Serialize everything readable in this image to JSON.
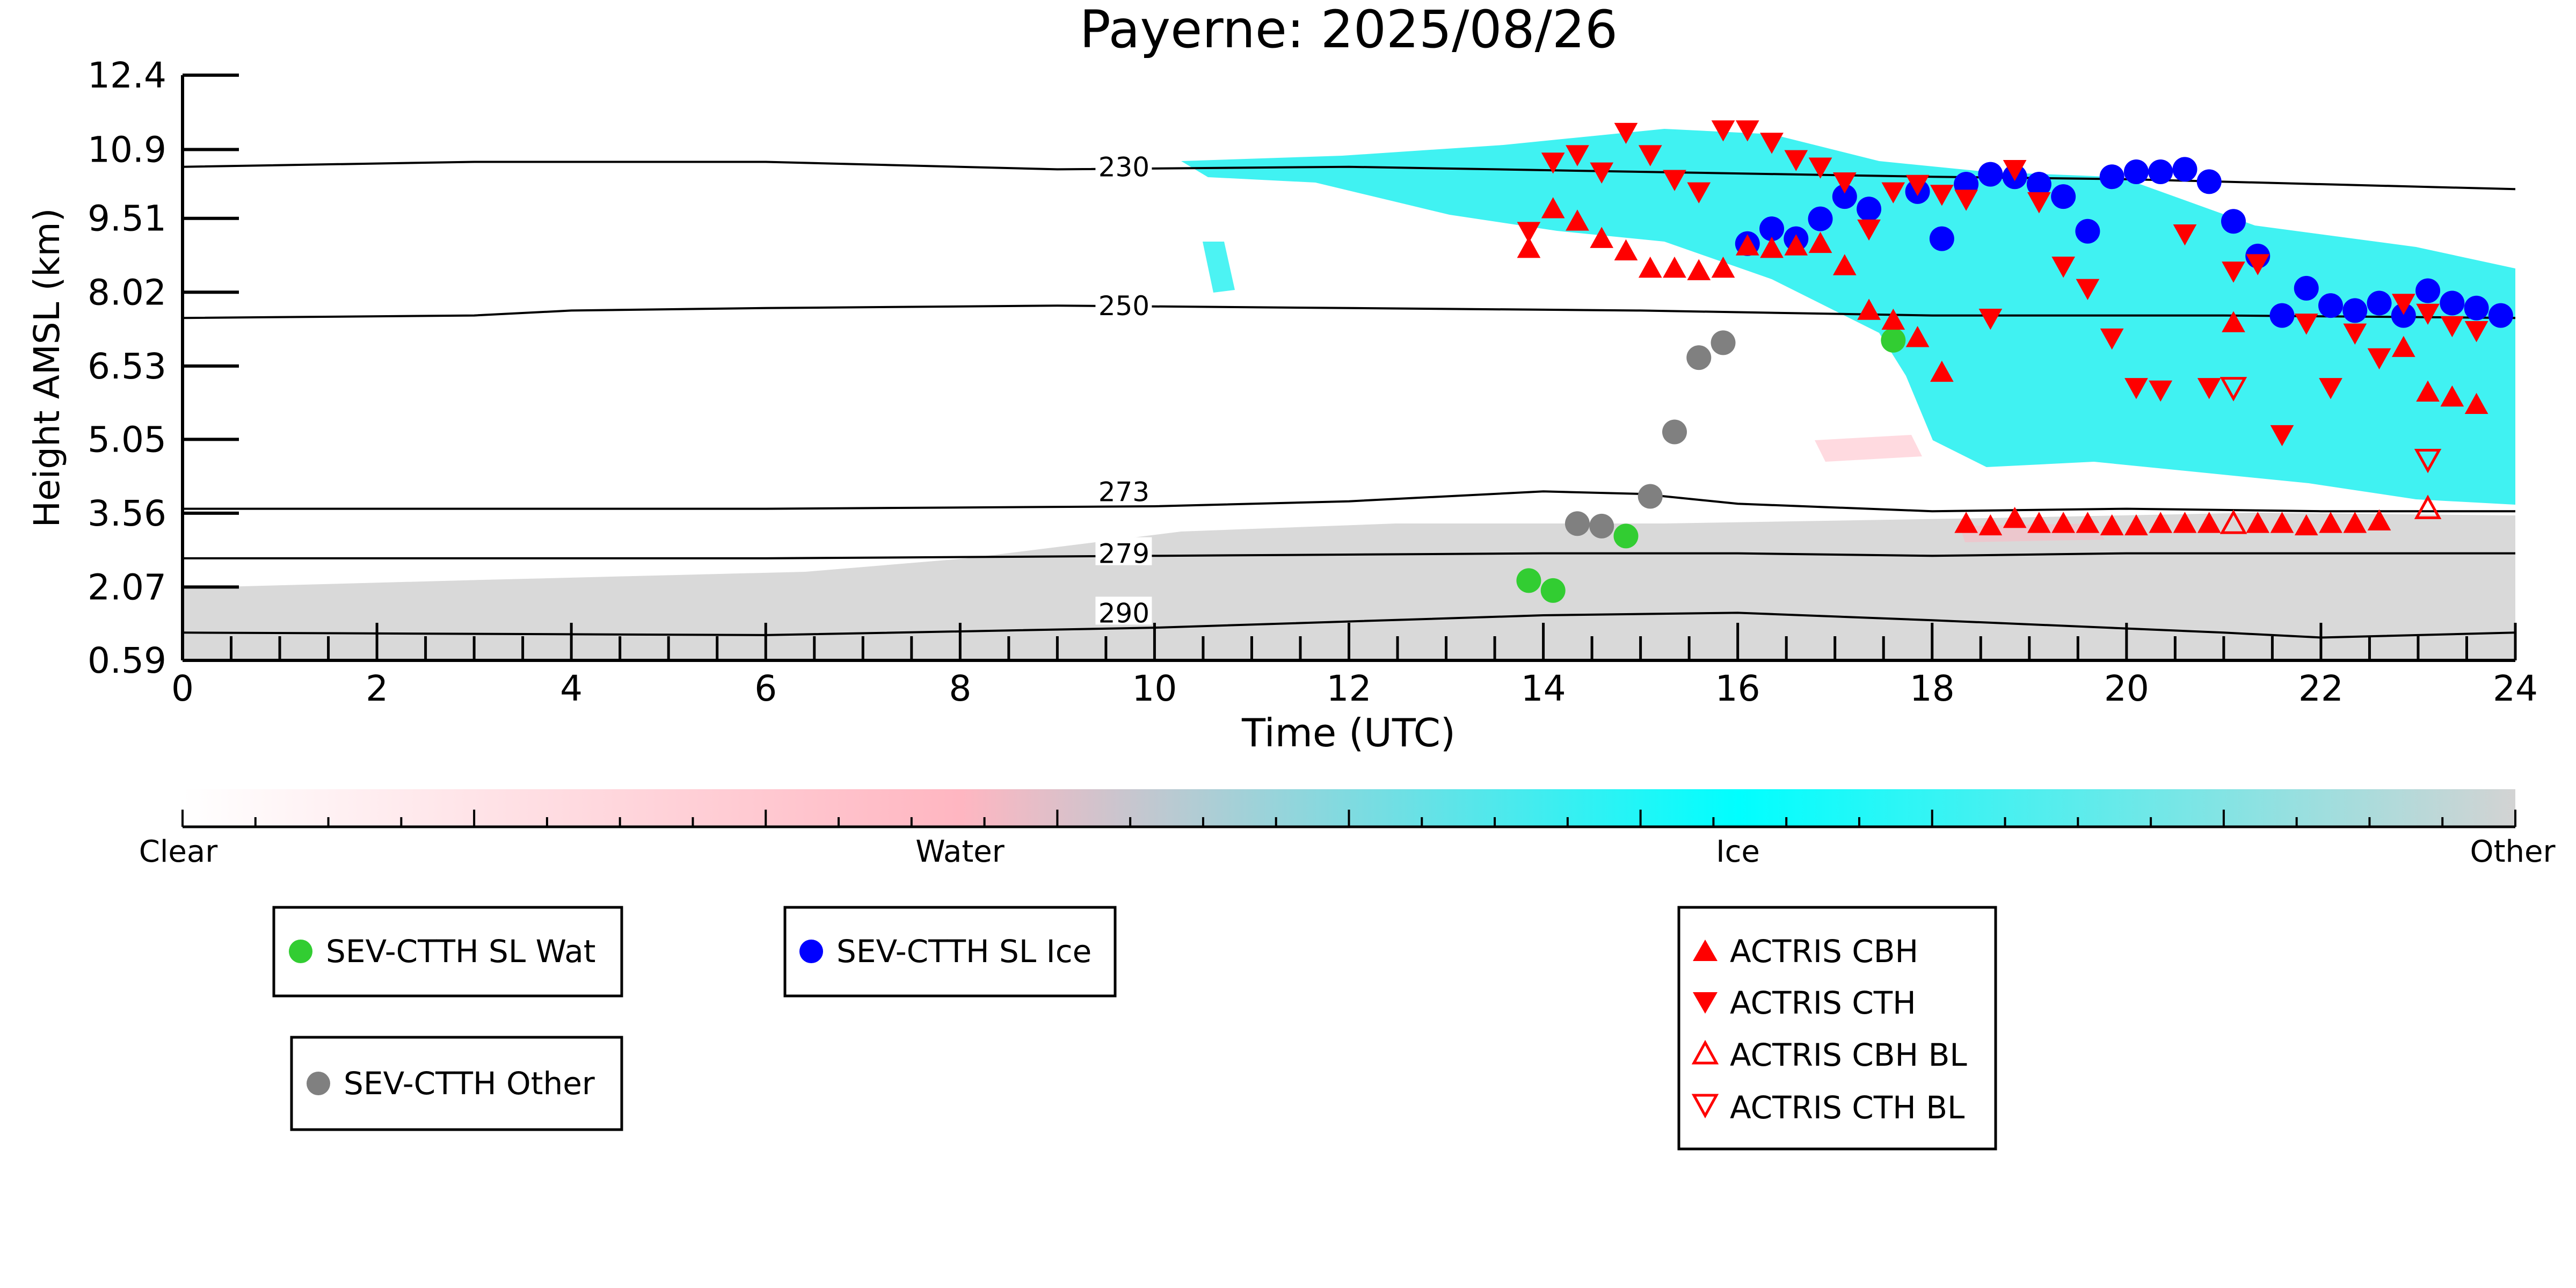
{
  "chart_data": {
    "type": "scatter",
    "title": "Payerne: 2025/08/26",
    "xlabel": "Time (UTC)",
    "ylabel": "Height AMSL (km)",
    "xlim": [
      0,
      24
    ],
    "ylim": [
      0.59,
      12.4
    ],
    "x_ticks": [
      0,
      2,
      4,
      6,
      8,
      10,
      12,
      14,
      16,
      18,
      20,
      22,
      24
    ],
    "y_ticks": [
      "0.59",
      "2.07",
      "3.56",
      "5.05",
      "6.53",
      "8.02",
      "9.51",
      "10.9",
      "12.4"
    ],
    "grid": false,
    "colors": {
      "clear": "#ffffff",
      "water": "#ffb6c1",
      "ice": "#00ffff",
      "other": "#d3d3d3",
      "sev_water": "#32cd32",
      "sev_ice": "#0000ff",
      "sev_other": "#808080",
      "actris": "#ff0000"
    },
    "colorbar": {
      "labels": [
        "Clear",
        "Water",
        "Ice",
        "Other"
      ]
    },
    "isotherms": [
      {
        "label": "230",
        "points": [
          [
            0,
            10.55
          ],
          [
            3,
            10.65
          ],
          [
            6,
            10.65
          ],
          [
            9,
            10.5
          ],
          [
            12,
            10.55
          ],
          [
            15,
            10.45
          ],
          [
            18,
            10.35
          ],
          [
            20,
            10.3
          ],
          [
            24,
            10.1
          ]
        ]
      },
      {
        "label": "250",
        "points": [
          [
            0,
            7.5
          ],
          [
            3,
            7.55
          ],
          [
            4,
            7.65
          ],
          [
            6,
            7.7
          ],
          [
            9,
            7.75
          ],
          [
            12,
            7.7
          ],
          [
            15,
            7.65
          ],
          [
            18,
            7.55
          ],
          [
            21,
            7.55
          ],
          [
            24,
            7.5
          ]
        ]
      },
      {
        "label": "273",
        "points": [
          [
            0,
            3.65
          ],
          [
            6,
            3.65
          ],
          [
            10,
            3.7
          ],
          [
            12,
            3.8
          ],
          [
            14,
            4.0
          ],
          [
            15,
            3.95
          ],
          [
            16,
            3.75
          ],
          [
            18,
            3.6
          ],
          [
            20,
            3.65
          ],
          [
            22,
            3.6
          ],
          [
            24,
            3.6
          ]
        ]
      },
      {
        "label": "279",
        "points": [
          [
            0,
            2.65
          ],
          [
            6,
            2.65
          ],
          [
            10,
            2.7
          ],
          [
            14,
            2.75
          ],
          [
            16,
            2.75
          ],
          [
            18,
            2.7
          ],
          [
            20,
            2.75
          ],
          [
            24,
            2.75
          ]
        ]
      },
      {
        "label": "290",
        "points": [
          [
            0,
            1.15
          ],
          [
            6,
            1.1
          ],
          [
            10,
            1.25
          ],
          [
            14,
            1.5
          ],
          [
            16,
            1.55
          ],
          [
            18,
            1.4
          ],
          [
            21,
            1.15
          ],
          [
            22,
            1.05
          ],
          [
            24,
            1.15
          ]
        ]
      }
    ],
    "series": [
      {
        "name": "SEV-CTTH SL Wat",
        "marker": "circle",
        "color": "#32cd32",
        "points": [
          [
            13.85,
            2.2
          ],
          [
            14.1,
            2.0
          ],
          [
            14.85,
            3.1
          ],
          [
            17.6,
            7.05
          ]
        ]
      },
      {
        "name": "SEV-CTTH SL Ice",
        "marker": "circle",
        "color": "#0000ff",
        "points": [
          [
            16.1,
            9.0
          ],
          [
            16.35,
            9.3
          ],
          [
            16.6,
            9.1
          ],
          [
            16.85,
            9.5
          ],
          [
            17.1,
            9.95
          ],
          [
            17.35,
            9.7
          ],
          [
            17.85,
            10.05
          ],
          [
            18.1,
            9.1
          ],
          [
            18.35,
            10.2
          ],
          [
            18.6,
            10.4
          ],
          [
            18.85,
            10.35
          ],
          [
            19.1,
            10.2
          ],
          [
            19.35,
            9.95
          ],
          [
            19.6,
            9.25
          ],
          [
            19.85,
            10.35
          ],
          [
            20.1,
            10.45
          ],
          [
            20.35,
            10.45
          ],
          [
            20.6,
            10.5
          ],
          [
            20.85,
            10.25
          ],
          [
            21.1,
            9.45
          ],
          [
            21.35,
            8.75
          ],
          [
            21.6,
            7.55
          ],
          [
            21.85,
            8.1
          ],
          [
            22.1,
            7.75
          ],
          [
            22.35,
            7.65
          ],
          [
            22.6,
            7.8
          ],
          [
            22.85,
            7.55
          ],
          [
            23.1,
            8.05
          ],
          [
            23.35,
            7.8
          ],
          [
            23.6,
            7.7
          ],
          [
            23.85,
            7.55
          ]
        ]
      },
      {
        "name": "SEV-CTTH Other",
        "marker": "circle",
        "color": "#808080",
        "points": [
          [
            14.35,
            3.35
          ],
          [
            14.6,
            3.3
          ],
          [
            15.1,
            3.9
          ],
          [
            15.35,
            5.2
          ],
          [
            15.6,
            6.7
          ],
          [
            15.85,
            7.0
          ]
        ]
      },
      {
        "name": "ACTRIS CBH",
        "marker": "triangle-up",
        "color": "#ff0000",
        "points": [
          [
            13.85,
            8.9
          ],
          [
            14.1,
            9.7
          ],
          [
            14.35,
            9.45
          ],
          [
            14.6,
            9.1
          ],
          [
            14.85,
            8.85
          ],
          [
            15.1,
            8.5
          ],
          [
            15.35,
            8.5
          ],
          [
            15.6,
            8.45
          ],
          [
            15.85,
            8.5
          ],
          [
            16.1,
            8.95
          ],
          [
            16.35,
            8.9
          ],
          [
            16.6,
            8.95
          ],
          [
            16.85,
            9.0
          ],
          [
            17.1,
            8.55
          ],
          [
            17.35,
            7.65
          ],
          [
            17.6,
            7.45
          ],
          [
            17.85,
            7.1
          ],
          [
            18.1,
            6.4
          ],
          [
            18.35,
            3.35
          ],
          [
            18.6,
            3.3
          ],
          [
            18.85,
            3.45
          ],
          [
            19.1,
            3.35
          ],
          [
            19.35,
            3.35
          ],
          [
            19.6,
            3.35
          ],
          [
            19.85,
            3.3
          ],
          [
            20.1,
            3.3
          ],
          [
            20.35,
            3.35
          ],
          [
            20.6,
            3.35
          ],
          [
            20.85,
            3.35
          ],
          [
            21.1,
            7.4
          ],
          [
            21.35,
            3.35
          ],
          [
            21.6,
            3.35
          ],
          [
            21.85,
            3.3
          ],
          [
            22.1,
            3.35
          ],
          [
            22.35,
            3.35
          ],
          [
            22.6,
            3.4
          ],
          [
            22.85,
            6.9
          ],
          [
            23.1,
            6.0
          ],
          [
            23.35,
            5.9
          ],
          [
            23.6,
            5.75
          ]
        ]
      },
      {
        "name": "ACTRIS CTH",
        "marker": "triangle-down",
        "color": "#ff0000",
        "points": [
          [
            13.85,
            9.25
          ],
          [
            14.1,
            10.65
          ],
          [
            14.35,
            10.8
          ],
          [
            14.6,
            10.45
          ],
          [
            14.85,
            11.25
          ],
          [
            15.1,
            10.8
          ],
          [
            15.35,
            10.3
          ],
          [
            15.6,
            10.05
          ],
          [
            15.85,
            11.3
          ],
          [
            16.1,
            11.3
          ],
          [
            16.35,
            11.05
          ],
          [
            16.6,
            10.7
          ],
          [
            16.85,
            10.55
          ],
          [
            17.1,
            10.25
          ],
          [
            17.35,
            9.3
          ],
          [
            17.6,
            10.05
          ],
          [
            17.85,
            10.2
          ],
          [
            18.1,
            10.0
          ],
          [
            18.35,
            9.9
          ],
          [
            18.6,
            7.5
          ],
          [
            18.85,
            10.5
          ],
          [
            19.1,
            9.85
          ],
          [
            19.35,
            8.55
          ],
          [
            19.6,
            8.1
          ],
          [
            19.85,
            7.1
          ],
          [
            20.1,
            6.1
          ],
          [
            20.35,
            6.05
          ],
          [
            20.6,
            9.2
          ],
          [
            20.85,
            6.1
          ],
          [
            21.1,
            8.45
          ],
          [
            21.35,
            8.6
          ],
          [
            21.6,
            5.15
          ],
          [
            21.85,
            7.4
          ],
          [
            22.1,
            6.1
          ],
          [
            22.35,
            7.2
          ],
          [
            22.6,
            6.7
          ],
          [
            22.85,
            7.8
          ],
          [
            23.1,
            7.6
          ],
          [
            23.35,
            7.35
          ],
          [
            23.6,
            7.25
          ]
        ]
      },
      {
        "name": "ACTRIS CBH BL",
        "marker": "triangle-up-open",
        "color": "#ff0000",
        "points": [
          [
            21.1,
            3.35
          ],
          [
            23.1,
            3.65
          ]
        ]
      },
      {
        "name": "ACTRIS CTH BL",
        "marker": "triangle-down-open",
        "color": "#ff0000",
        "points": [
          [
            21.1,
            6.1
          ],
          [
            23.1,
            4.65
          ]
        ]
      }
    ]
  }
}
